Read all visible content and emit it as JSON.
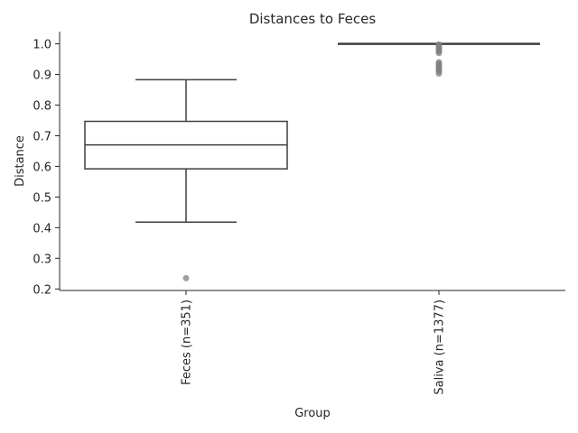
{
  "chart_data": {
    "type": "box",
    "title": "Distances to Feces",
    "xlabel": "Group",
    "ylabel": "Distance",
    "ylim": [
      0.195,
      1.04
    ],
    "yticks": [
      0.2,
      0.3,
      0.4,
      0.5,
      0.6,
      0.7,
      0.8,
      0.9,
      1.0
    ],
    "ytick_labels": [
      "0.2",
      "0.3",
      "0.4",
      "0.5",
      "0.6",
      "0.7",
      "0.8",
      "0.9",
      "1.0"
    ],
    "grid": false,
    "categories": [
      "Feces (n=351)",
      "Saliva (n=1377)"
    ],
    "boxes": [
      {
        "category": "Feces (n=351)",
        "whisker_low": 0.418,
        "q1": 0.592,
        "median": 0.67,
        "q3": 0.747,
        "whisker_high": 0.883,
        "outliers": [
          0.235
        ]
      },
      {
        "category": "Saliva (n=1377)",
        "whisker_low": 1.0,
        "q1": 1.0,
        "median": 1.0,
        "q3": 1.0,
        "whisker_high": 1.0,
        "outliers": [
          0.903,
          0.91,
          0.915,
          0.92,
          0.925,
          0.93,
          0.935,
          0.94,
          0.97,
          0.975,
          0.98,
          0.985,
          0.99,
          0.995,
          0.998
        ]
      }
    ],
    "colors": {
      "box_edge": "#3f3f3f",
      "outlier": "#7f7f7f",
      "axis": "#262626"
    }
  }
}
